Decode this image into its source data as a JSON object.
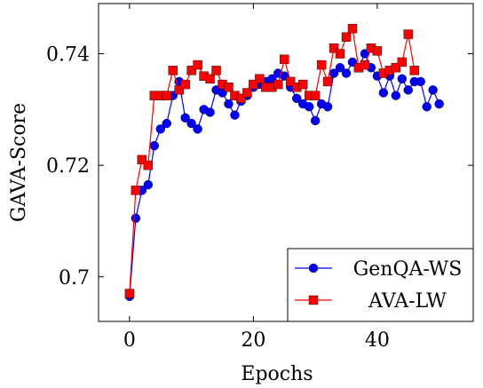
{
  "chart_data": {
    "type": "line",
    "xlabel": "Epochs",
    "ylabel": "GAVA-Score",
    "xlim": [
      -5,
      55.5
    ],
    "ylim": [
      0.692,
      0.749
    ],
    "xticks": [
      0,
      20,
      40
    ],
    "xtick_labels": [
      "0",
      "20",
      "40"
    ],
    "yticks": [
      0.7,
      0.72,
      0.74
    ],
    "ytick_labels": [
      "0.7",
      "0.72",
      "0.74"
    ],
    "grid": false,
    "legend_position": "bottom-right",
    "series": [
      {
        "name": "GenQA-WS",
        "color": "#0000ff",
        "marker": "circle",
        "x": [
          0,
          1,
          2,
          3,
          4,
          5,
          6,
          7,
          8,
          9,
          10,
          11,
          12,
          13,
          14,
          15,
          16,
          17,
          18,
          19,
          20,
          21,
          22,
          23,
          24,
          25,
          26,
          27,
          28,
          29,
          30,
          31,
          32,
          33,
          34,
          35,
          36,
          37,
          38,
          39,
          40,
          41,
          42,
          43,
          44,
          45,
          46,
          47,
          48,
          49,
          50
        ],
        "y": [
          0.6965,
          0.7105,
          0.7155,
          0.7165,
          0.7235,
          0.7265,
          0.7275,
          0.7325,
          0.735,
          0.7285,
          0.7275,
          0.7265,
          0.73,
          0.7295,
          0.7335,
          0.733,
          0.731,
          0.729,
          0.7315,
          0.7325,
          0.734,
          0.7345,
          0.735,
          0.7355,
          0.7365,
          0.736,
          0.734,
          0.732,
          0.731,
          0.7305,
          0.728,
          0.731,
          0.7305,
          0.7365,
          0.7375,
          0.7365,
          0.7385,
          0.7375,
          0.74,
          0.7375,
          0.736,
          0.733,
          0.736,
          0.7325,
          0.7355,
          0.7335,
          0.735,
          0.735,
          0.7305,
          0.7335,
          0.731
        ]
      },
      {
        "name": "AVA-LW",
        "color": "#ff0000",
        "marker": "square",
        "x": [
          0,
          1,
          2,
          3,
          4,
          5,
          6,
          7,
          8,
          9,
          10,
          11,
          12,
          13,
          14,
          15,
          16,
          17,
          18,
          19,
          20,
          21,
          22,
          23,
          24,
          25,
          26,
          27,
          28,
          29,
          30,
          31,
          32,
          33,
          34,
          35,
          36,
          37,
          38,
          39,
          40,
          41,
          42,
          43,
          44,
          45,
          46
        ],
        "y": [
          0.697,
          0.7155,
          0.721,
          0.72,
          0.7325,
          0.7325,
          0.7325,
          0.737,
          0.7335,
          0.7345,
          0.737,
          0.738,
          0.736,
          0.7355,
          0.737,
          0.7345,
          0.734,
          0.7325,
          0.732,
          0.733,
          0.7345,
          0.7355,
          0.734,
          0.734,
          0.7345,
          0.739,
          0.735,
          0.734,
          0.7345,
          0.7325,
          0.7325,
          0.738,
          0.735,
          0.741,
          0.74,
          0.743,
          0.7445,
          0.7375,
          0.738,
          0.741,
          0.7405,
          0.7365,
          0.737,
          0.7375,
          0.7385,
          0.7435,
          0.737
        ]
      }
    ]
  }
}
